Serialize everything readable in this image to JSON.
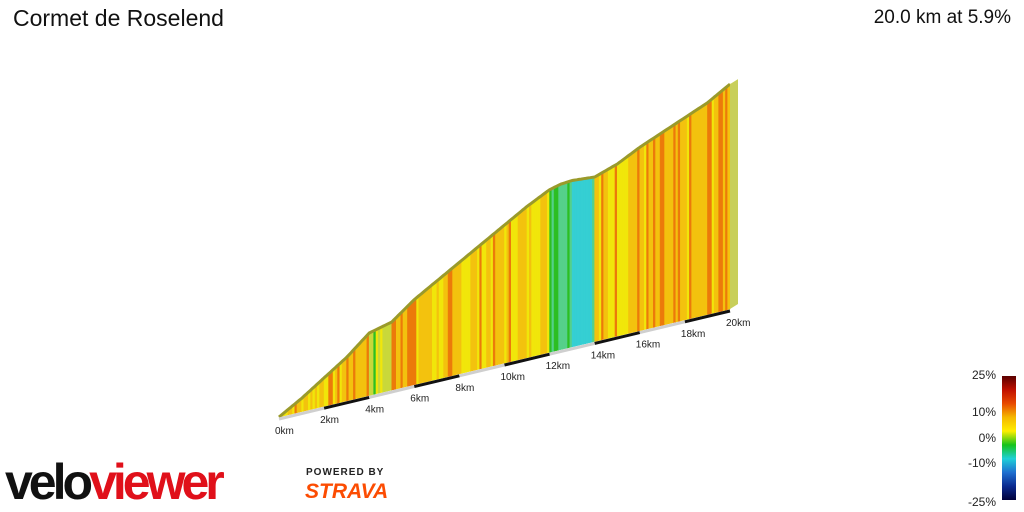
{
  "header": {
    "title": "Cormet de Roselend",
    "summary": "20.0 km at 5.9%"
  },
  "chart_data": {
    "type": "area",
    "description_unit": "gradient-colored 3D elevation profile",
    "x_unit": "km",
    "x_tick_labels": [
      "0km",
      "2km",
      "4km",
      "6km",
      "8km",
      "10km",
      "12km",
      "14km",
      "16km",
      "18km",
      "20km"
    ],
    "distance_km": [
      0,
      1,
      2,
      3,
      4,
      5,
      6,
      7,
      8,
      9,
      10,
      11,
      12,
      12.5,
      13,
      13.5,
      14,
      15,
      16,
      17,
      18,
      19,
      20
    ],
    "relative_height": [
      0.0,
      0.07,
      0.15,
      0.23,
      0.33,
      0.36,
      0.45,
      0.52,
      0.59,
      0.66,
      0.73,
      0.8,
      0.86,
      0.875,
      0.88,
      0.875,
      0.87,
      0.91,
      0.97,
      1.02,
      1.07,
      1.12,
      1.19
    ],
    "segment_gradient_pct": [
      6,
      6,
      6,
      7,
      3,
      8,
      6,
      6,
      6,
      6,
      6,
      6,
      1,
      0,
      -3,
      -2,
      6,
      6,
      6,
      6,
      6,
      7
    ],
    "legend": {
      "labels": [
        "25%",
        "10%",
        "0%",
        "-10%",
        "-25%"
      ],
      "stops": [
        "#5a0000",
        "#c01000",
        "#e84a00",
        "#f5b800",
        "#ffee00",
        "#16c21a",
        "#1fd0d8",
        "#1f6fd0",
        "#0a2a90",
        "#00003a"
      ]
    }
  },
  "branding": {
    "velo": "velo",
    "viewer": "viewer",
    "powered_by": "POWERED BY",
    "strava": "STRAVA"
  }
}
